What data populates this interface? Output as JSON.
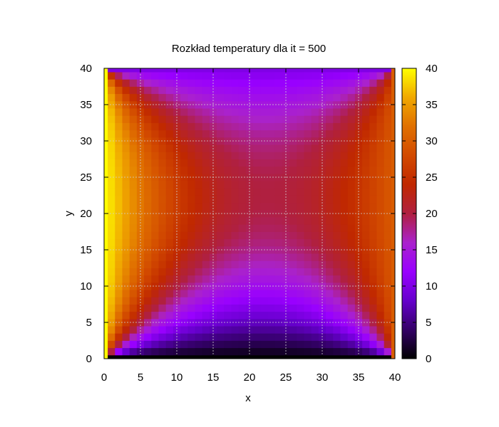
{
  "chart_data": {
    "type": "heatmap",
    "title": "Rozkład temperatury dla it = 500",
    "xlabel": "x",
    "ylabel": "y",
    "xlim": [
      0,
      40
    ],
    "ylim": [
      0,
      40
    ],
    "x_ticks": [
      "0",
      "5",
      "10",
      "15",
      "20",
      "25",
      "30",
      "35",
      "40"
    ],
    "y_ticks": [
      "0",
      "5",
      "10",
      "15",
      "20",
      "25",
      "30",
      "35",
      "40"
    ],
    "colorbar": {
      "range": [
        0,
        40
      ],
      "ticks": [
        "0",
        "5",
        "10",
        "15",
        "20",
        "25",
        "30",
        "35",
        "40"
      ],
      "colormap": [
        "#000000",
        "#330066",
        "#6600cc",
        "#9900ff",
        "#aa22cc",
        "#b02040",
        "#c02800",
        "#d24a00",
        "#e07000",
        "#f0a800",
        "#ffff00"
      ]
    },
    "grid": true,
    "grid_size": 41,
    "boundary_conditions": {
      "left_edge": 40,
      "right_edge": 30,
      "bottom_edge": 0,
      "top_edge": 10
    },
    "iteration": 500
  }
}
